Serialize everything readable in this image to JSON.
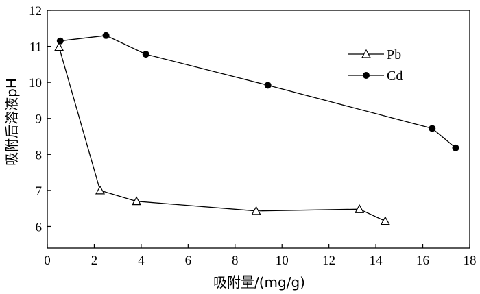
{
  "chart_data": {
    "type": "line",
    "xlabel": "吸附量/(mg/g)",
    "ylabel": "吸附后溶液pH",
    "xlim": [
      0,
      18
    ],
    "ylim": [
      5.4,
      12
    ],
    "xticks": [
      0,
      2,
      4,
      6,
      8,
      10,
      12,
      14,
      16,
      18
    ],
    "yticks": [
      6,
      7,
      8,
      9,
      10,
      11,
      12
    ],
    "grid": false,
    "legend_position": "top-right",
    "series": [
      {
        "name": "Pb",
        "marker": "open-triangle",
        "color": "#000000",
        "x": [
          0.5,
          2.25,
          3.8,
          8.9,
          13.3,
          14.4
        ],
        "y": [
          10.98,
          7.0,
          6.7,
          6.43,
          6.48,
          6.15
        ]
      },
      {
        "name": "Cd",
        "marker": "filled-circle",
        "color": "#000000",
        "x": [
          0.55,
          2.5,
          4.2,
          9.4,
          16.4,
          17.4
        ],
        "y": [
          11.15,
          11.3,
          10.78,
          9.92,
          8.72,
          8.18
        ]
      }
    ]
  }
}
